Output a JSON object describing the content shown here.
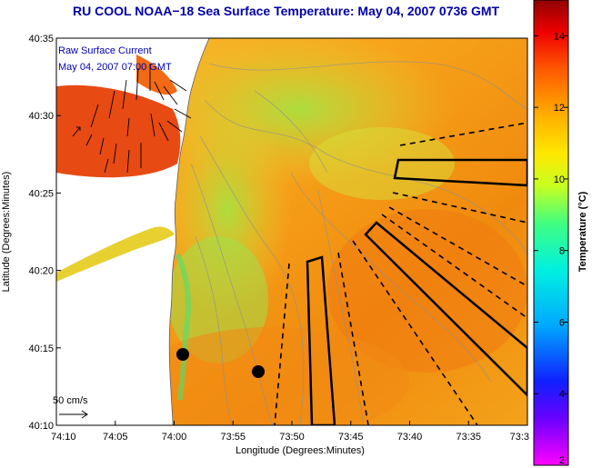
{
  "title": "RU COOL  NOAA−18  Sea Surface Temperature:  May 04, 2007 0736 GMT",
  "map": {
    "overlay_line1": "Raw Surface Current",
    "overlay_line2": "May 04, 2007 07:00 GMT",
    "scale_label": "50 cm/s",
    "y_axis_label": "Latitude (Degrees:Minutes)",
    "x_axis_label": "Longitude (Degrees:Minutes)",
    "y_ticks": [
      "40:35",
      "40:30",
      "40:25",
      "40:20",
      "40:15",
      "40:10"
    ],
    "x_ticks": [
      "74:10",
      "74:05",
      "74:00",
      "73:55",
      "73:50",
      "73:45",
      "73:40",
      "73:35",
      "73:3"
    ]
  },
  "colorbar": {
    "label": "Temperature (°C)",
    "min": 2,
    "max": 15,
    "ticks": [
      "14",
      "12",
      "10",
      "8",
      "6",
      "4",
      "2"
    ],
    "tick_values": [
      14,
      12,
      10,
      8,
      6,
      4,
      2
    ],
    "gradient_colors": [
      "#ff00ff",
      "#2000ff",
      "#00b0ff",
      "#00ffc0",
      "#90ff40",
      "#ffff00",
      "#ffb000",
      "#ff6000",
      "#ff0000",
      "#a00000"
    ]
  }
}
